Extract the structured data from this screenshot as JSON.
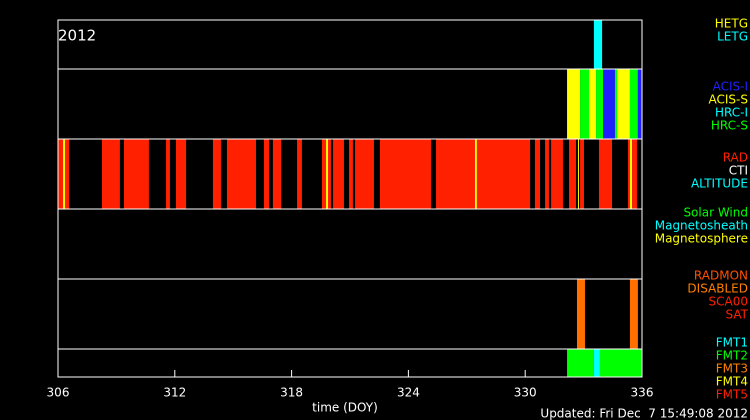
{
  "chart_data": {
    "type": "timeline",
    "year": "2012",
    "xlabel": "time (DOY)",
    "updated": "Updated: Fri Dec  7 15:49:08 2012",
    "xlim": [
      306,
      336
    ],
    "xticks": [
      306,
      312,
      318,
      324,
      330,
      336
    ],
    "panels": [
      {
        "legend": [
          {
            "label": "HETG",
            "color": "#ffff00"
          },
          {
            "label": "LETG",
            "color": "#00ffff"
          }
        ],
        "segments": [
          {
            "start": 333.53,
            "end": 333.95,
            "color": "#00ffff"
          }
        ]
      },
      {
        "legend": [
          {
            "label": "ACIS-I",
            "color": "#2020ff"
          },
          {
            "label": "ACIS-S",
            "color": "#ffff00"
          },
          {
            "label": "HRC-I",
            "color": "#00ffff"
          },
          {
            "label": "HRC-S",
            "color": "#00ff00"
          }
        ],
        "segments": [
          {
            "start": 332.15,
            "end": 332.82,
            "color": "#ffff00"
          },
          {
            "start": 332.82,
            "end": 333.28,
            "color": "#00ff00"
          },
          {
            "start": 333.28,
            "end": 333.64,
            "color": "#ffff00"
          },
          {
            "start": 333.64,
            "end": 334.0,
            "color": "#00ff00"
          },
          {
            "start": 334.0,
            "end": 334.61,
            "color": "#2020ff"
          },
          {
            "start": 334.61,
            "end": 334.72,
            "color": "#00ff00"
          },
          {
            "start": 334.72,
            "end": 335.38,
            "color": "#ffff00"
          },
          {
            "start": 335.38,
            "end": 335.79,
            "color": "#00ff00"
          },
          {
            "start": 335.79,
            "end": 336,
            "color": "#2020ff"
          }
        ]
      },
      {
        "legend": [
          {
            "label": "RAD",
            "color": "#ff2000"
          },
          {
            "label": "CTI",
            "color": "#ffffff"
          },
          {
            "label": "ALTITUDE",
            "color": "#00ffff"
          }
        ],
        "segments": [
          {
            "start": 306,
            "end": 306.57,
            "color": "#ff2000"
          },
          {
            "start": 306.26,
            "end": 306.36,
            "color": "#ffff00"
          },
          {
            "start": 308.26,
            "end": 309.18,
            "color": "#ff2000"
          },
          {
            "start": 309.39,
            "end": 310.67,
            "color": "#ff2000"
          },
          {
            "start": 311.55,
            "end": 311.75,
            "color": "#ff2000"
          },
          {
            "start": 312.06,
            "end": 312.58,
            "color": "#ff2000"
          },
          {
            "start": 313.96,
            "end": 314.37,
            "color": "#ff2000"
          },
          {
            "start": 314.68,
            "end": 316.17,
            "color": "#ff2000"
          },
          {
            "start": 316.58,
            "end": 316.84,
            "color": "#ff2000"
          },
          {
            "start": 317.04,
            "end": 317.46,
            "color": "#ff2000"
          },
          {
            "start": 318.28,
            "end": 318.53,
            "color": "#ff2000"
          },
          {
            "start": 319.56,
            "end": 319.77,
            "color": "#ff2000"
          },
          {
            "start": 319.77,
            "end": 319.87,
            "color": "#ffff00"
          },
          {
            "start": 319.87,
            "end": 320.02,
            "color": "#ff2000"
          },
          {
            "start": 320.13,
            "end": 320.69,
            "color": "#ff2000"
          },
          {
            "start": 320.95,
            "end": 321.15,
            "color": "#ff2000"
          },
          {
            "start": 321.26,
            "end": 322.23,
            "color": "#ff2000"
          },
          {
            "start": 322.54,
            "end": 325.16,
            "color": "#ff2000"
          },
          {
            "start": 325.42,
            "end": 327.42,
            "color": "#ff2000"
          },
          {
            "start": 327.42,
            "end": 327.52,
            "color": "#ffff00"
          },
          {
            "start": 327.52,
            "end": 330.25,
            "color": "#ff2000"
          },
          {
            "start": 330.5,
            "end": 330.76,
            "color": "#ff2000"
          },
          {
            "start": 331.02,
            "end": 331.22,
            "color": "#ff2000"
          },
          {
            "start": 331.33,
            "end": 331.94,
            "color": "#ff2000"
          },
          {
            "start": 332.25,
            "end": 332.61,
            "color": "#ff2000"
          },
          {
            "start": 332.71,
            "end": 332.76,
            "color": "#ffff00"
          },
          {
            "start": 332.82,
            "end": 333.02,
            "color": "#ff2000"
          },
          {
            "start": 333.79,
            "end": 334.46,
            "color": "#ff2000"
          },
          {
            "start": 335.28,
            "end": 335.38,
            "color": "#ff2000"
          },
          {
            "start": 335.38,
            "end": 335.49,
            "color": "#ffff00"
          },
          {
            "start": 335.49,
            "end": 335.74,
            "color": "#ff2000"
          }
        ]
      },
      {
        "legend": [
          {
            "label": "Solar Wind",
            "color": "#00ff00"
          },
          {
            "label": "Magnetosheath",
            "color": "#00ffff"
          },
          {
            "label": "Magnetosphere",
            "color": "#ffff00"
          }
        ],
        "segments": []
      },
      {
        "legend": [
          {
            "label": "RADMON",
            "color": "#ff5000"
          },
          {
            "label": "DISABLED",
            "color": "#ff8000"
          },
          {
            "label": "SCA00",
            "color": "#ff2000"
          },
          {
            "label": "SAT",
            "color": "#ff2000"
          }
        ],
        "segments": [
          {
            "start": 332.66,
            "end": 333.07,
            "color": "#ff7000"
          },
          {
            "start": 335.38,
            "end": 335.79,
            "color": "#ff7000"
          }
        ]
      },
      {
        "legend": [
          {
            "label": "FMT1",
            "color": "#00ffff"
          },
          {
            "label": "FMT2",
            "color": "#00ff00"
          },
          {
            "label": "FMT3",
            "color": "#ff8000"
          },
          {
            "label": "FMT4",
            "color": "#ffff00"
          },
          {
            "label": "FMT5",
            "color": "#ff2000"
          }
        ],
        "segments": [
          {
            "start": 332.15,
            "end": 333.53,
            "color": "#00ff00"
          },
          {
            "start": 333.53,
            "end": 333.84,
            "color": "#00ffff"
          },
          {
            "start": 333.84,
            "end": 336,
            "color": "#00ff00"
          }
        ]
      }
    ]
  }
}
